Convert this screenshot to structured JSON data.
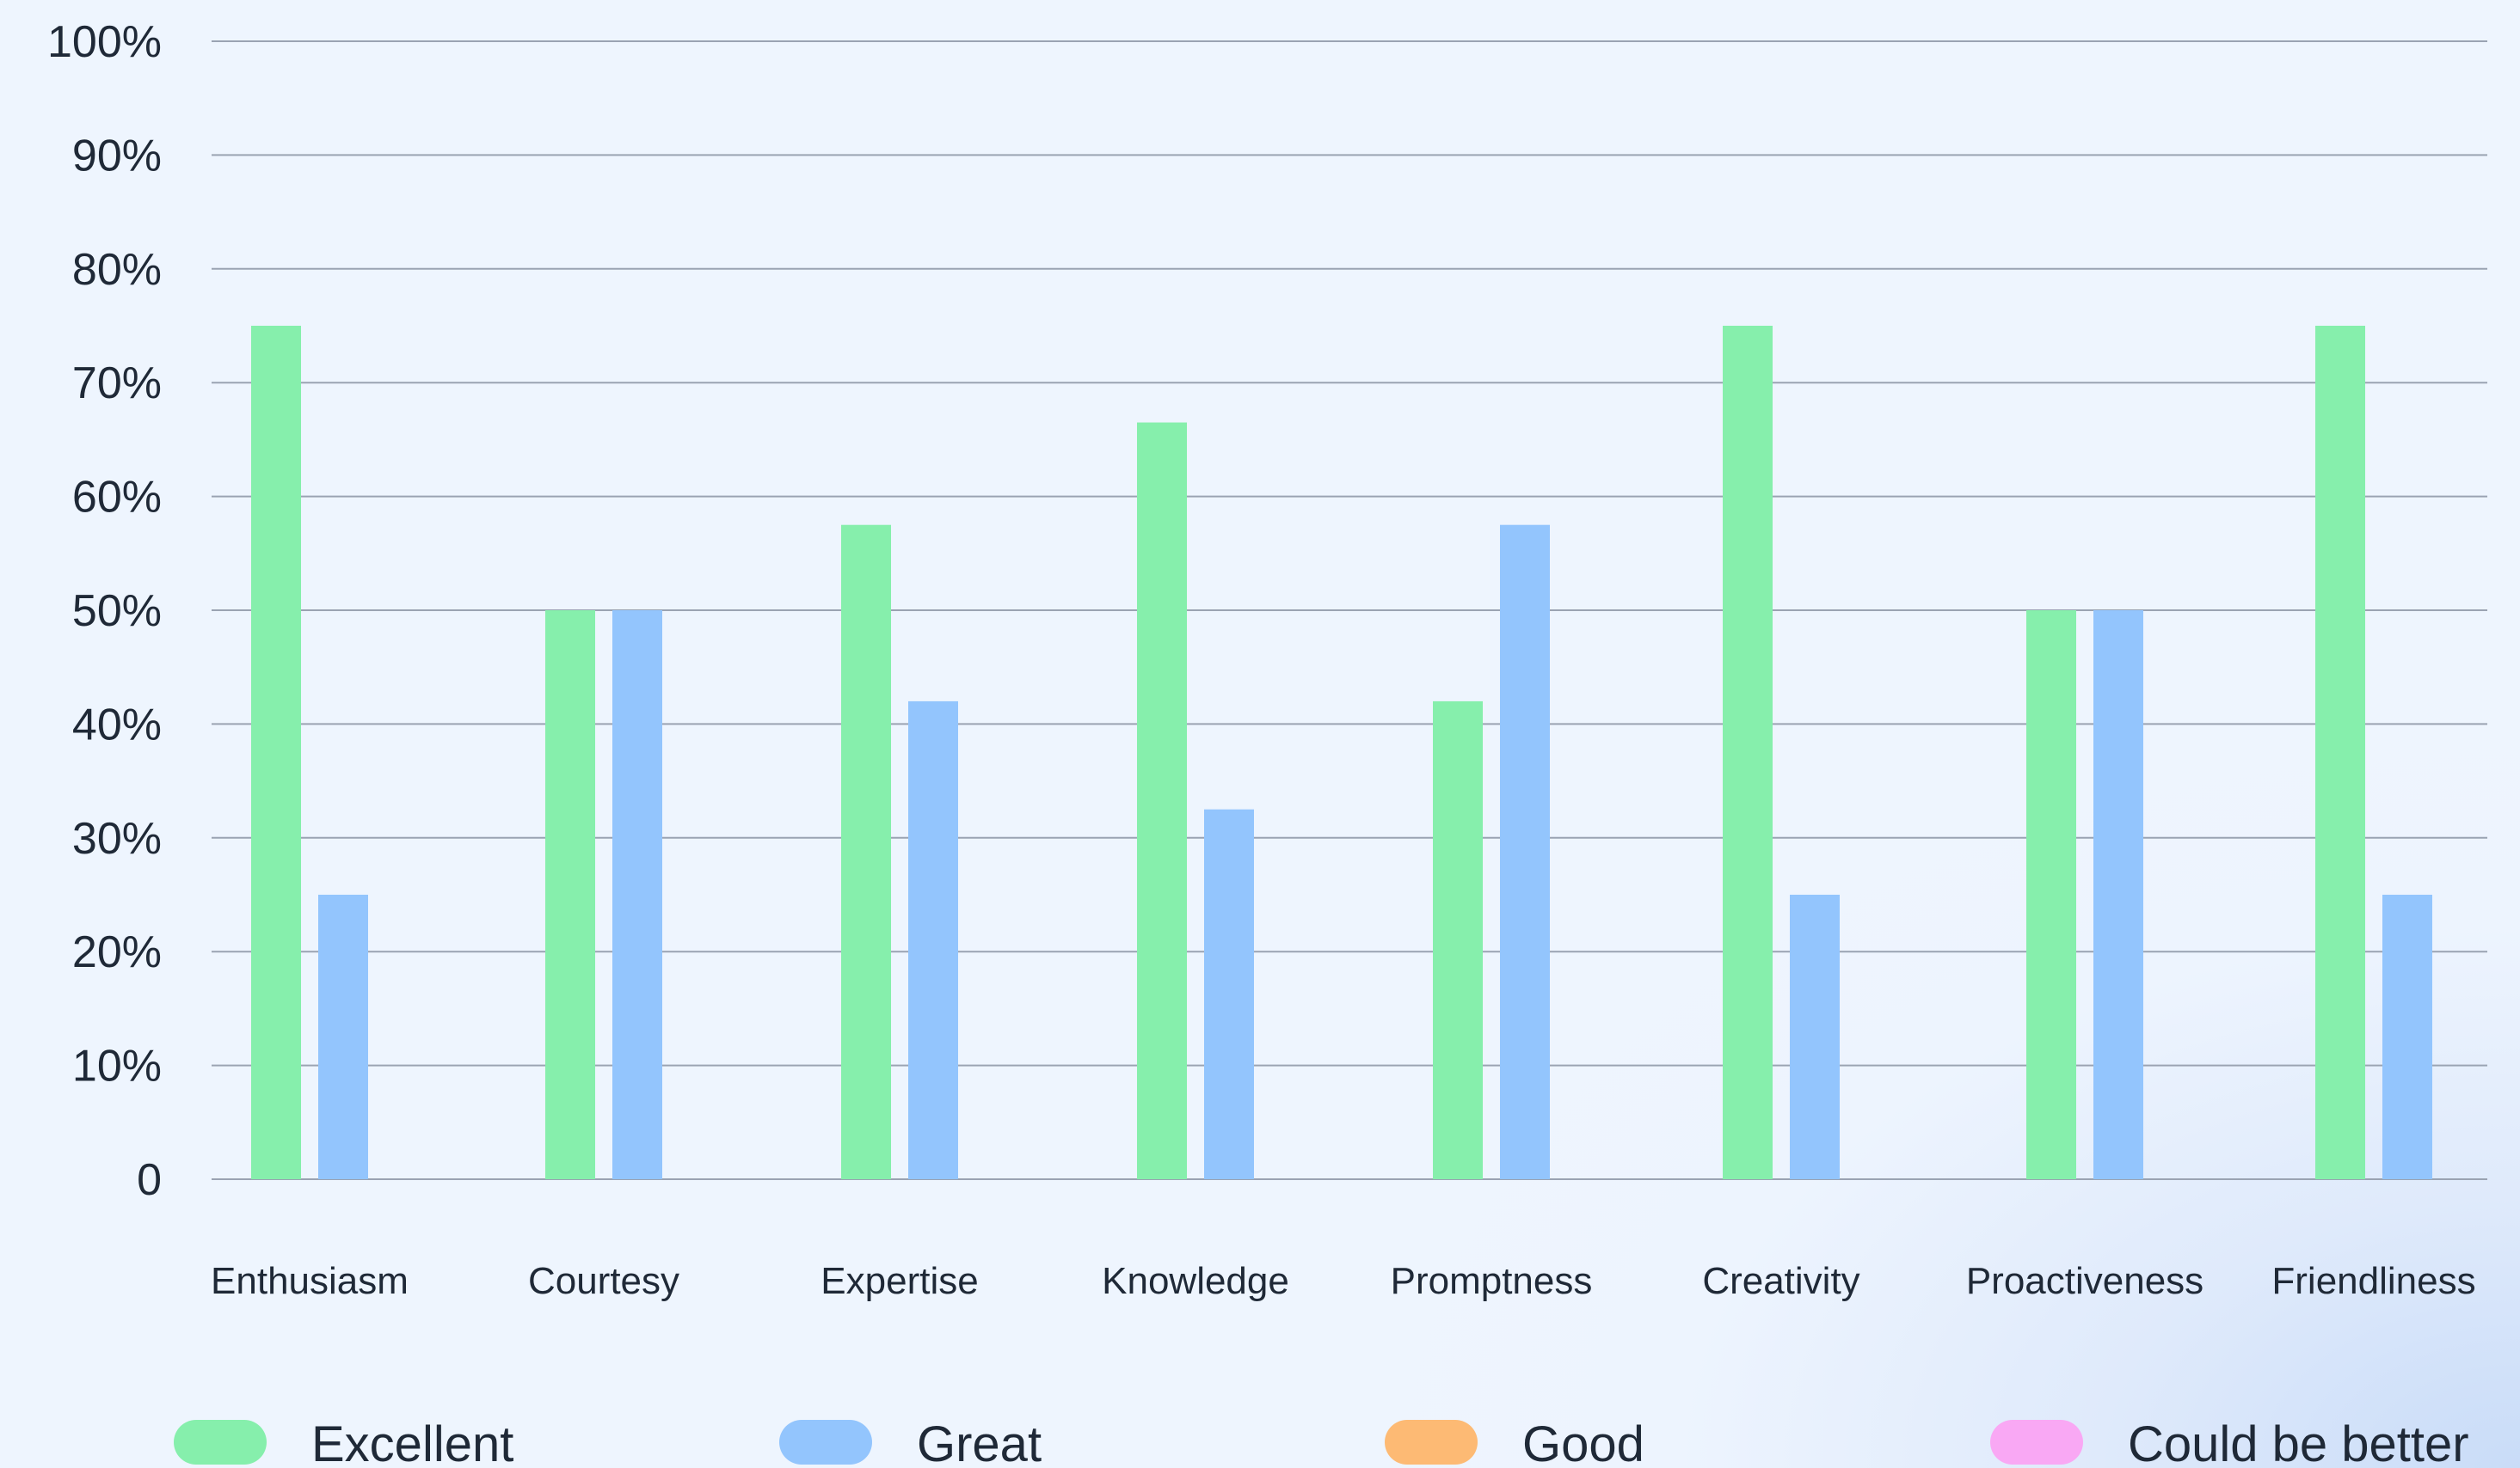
{
  "chart_data": {
    "type": "bar",
    "categories": [
      "Enthusiasm",
      "Courtesy",
      "Expertise",
      "Knowledge",
      "Promptness",
      "Creativity",
      "Proactiveness",
      "Friendliness"
    ],
    "series": [
      {
        "name": "Excellent",
        "color": "#86efac",
        "values": [
          75,
          50,
          57.5,
          66.5,
          42,
          75,
          50,
          75
        ]
      },
      {
        "name": "Great",
        "color": "#93c5fd",
        "values": [
          25,
          50,
          42,
          32.5,
          57.5,
          25,
          50,
          25
        ]
      },
      {
        "name": "Good",
        "color": "#fdba74",
        "values": [
          0,
          0,
          0,
          0,
          0,
          0,
          0,
          0
        ]
      },
      {
        "name": "Could be better",
        "color": "#f9a8f4",
        "values": [
          0,
          0,
          0,
          0,
          0,
          0,
          0,
          0
        ]
      }
    ],
    "ylim": [
      0,
      100
    ],
    "yticks": [
      "0",
      "10%",
      "20%",
      "30%",
      "40%",
      "50%",
      "60%",
      "70%",
      "80%",
      "90%",
      "100%"
    ],
    "grid": true,
    "legend_position": "bottom",
    "colors": {
      "grid": "#9aa3b2",
      "text": "#1f2937"
    }
  }
}
